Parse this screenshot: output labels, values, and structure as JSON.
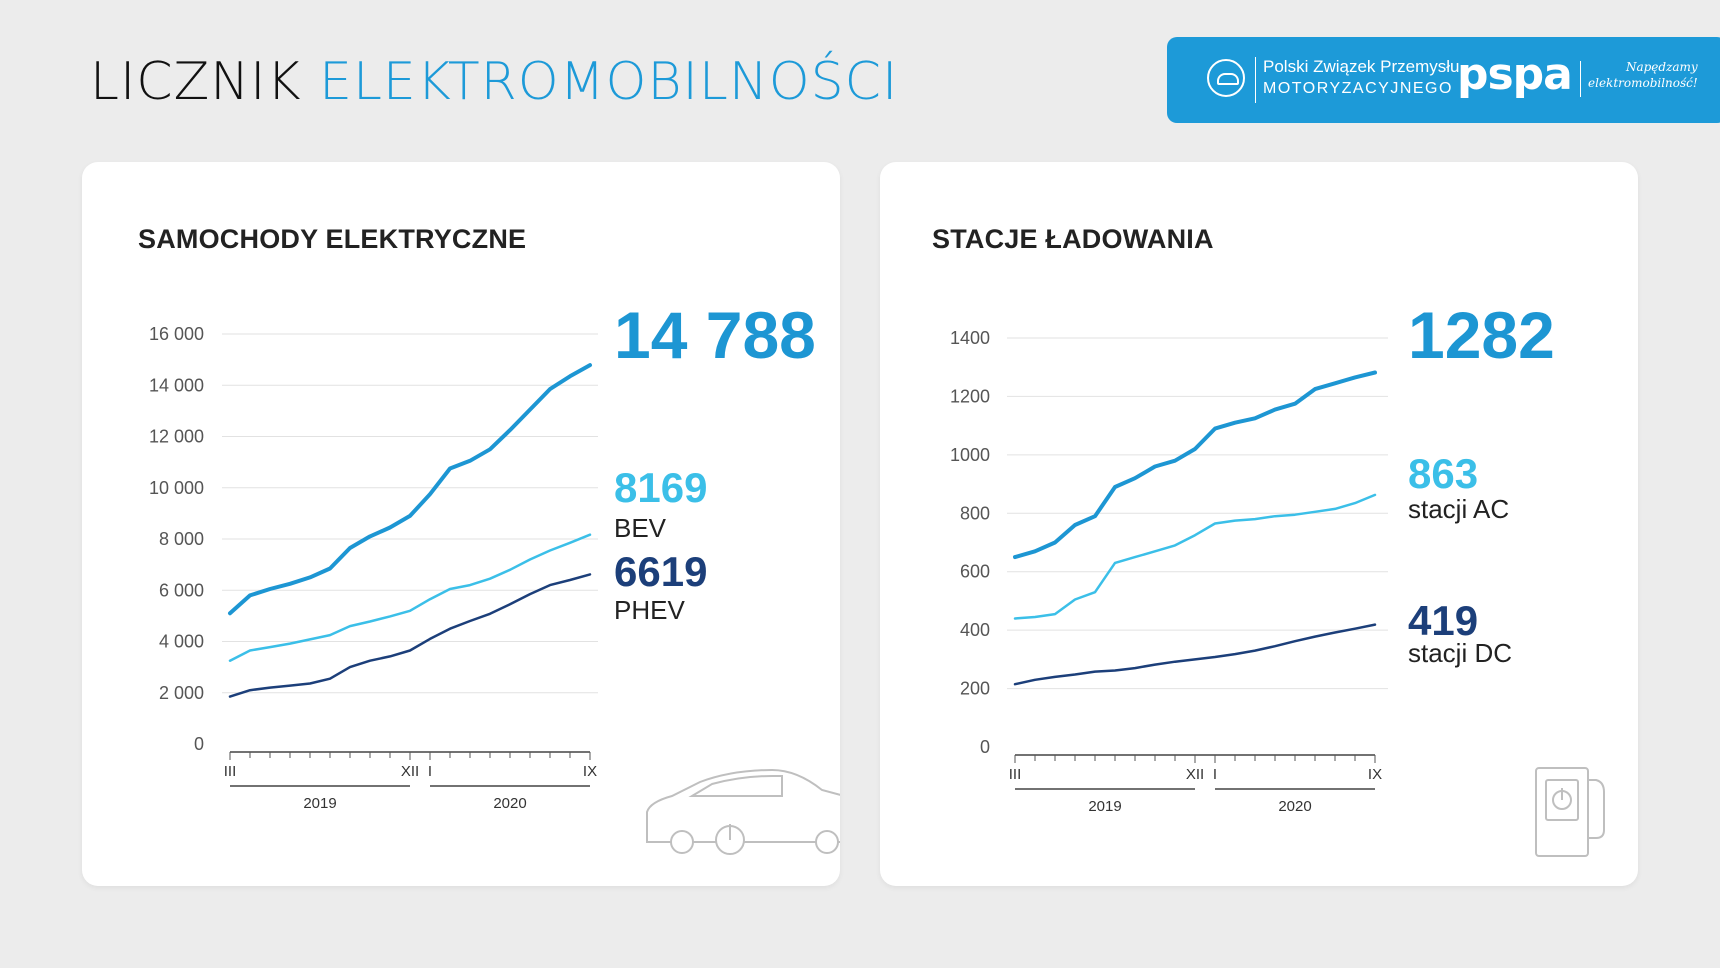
{
  "header": {
    "title_part1": "LICZNIK",
    "title_part2": "ELEKTROMOBILNOŚCI"
  },
  "logos": {
    "pzpm_line1": "Polski Związek Przemysłu",
    "pzpm_line2": "MOTORYZACYJNEGO",
    "pspa": "pspa",
    "pspa_tag1": "Napędzamy",
    "pspa_tag2": "elektromobilność!"
  },
  "colors": {
    "accent": "#1d9ad8",
    "total": "#1d96d3",
    "light": "#3bbfe8",
    "dark": "#1c3f7a",
    "bg": "#ececec"
  },
  "cars": {
    "title": "SAMOCHODY ELEKTRYCZNE",
    "total_value": "14 788",
    "bev_value": "8169",
    "bev_label": "BEV",
    "phev_value": "6619",
    "phev_label": "PHEV",
    "icon": "electric-car-icon"
  },
  "stations": {
    "title": "STACJE ŁADOWANIA",
    "total_value": "1282",
    "ac_value": "863",
    "ac_label": "stacji AC",
    "dc_value": "419",
    "dc_label": "stacji DC",
    "icon": "charging-station-icon"
  },
  "chart_data": [
    {
      "type": "line",
      "title": "SAMOCHODY ELEKTRYCZNE",
      "x_start_label": "III",
      "x_end_2019_label": "XII",
      "x_start_2020_label": "I",
      "x_end_label": "IX",
      "year_labels": [
        "2019",
        "2020"
      ],
      "yticks": [
        "0",
        "2 000",
        "4 000",
        "6 000",
        "8 000",
        "10 000",
        "12 000",
        "14 000",
        "16 000"
      ],
      "ylim": [
        0,
        16000
      ],
      "months": [
        "2019-03",
        "2019-04",
        "2019-05",
        "2019-06",
        "2019-07",
        "2019-08",
        "2019-09",
        "2019-10",
        "2019-11",
        "2019-12",
        "2020-01",
        "2020-02",
        "2020-03",
        "2020-04",
        "2020-05",
        "2020-06",
        "2020-07",
        "2020-08",
        "2020-09"
      ],
      "series": [
        {
          "key": "total",
          "values": [
            5100,
            5800,
            6050,
            6250,
            6500,
            6850,
            7650,
            8100,
            8450,
            8900,
            9750,
            10750,
            11050,
            11500,
            12250,
            13050,
            13850,
            14350,
            14788
          ]
        },
        {
          "key": "bev",
          "values": [
            3250,
            3650,
            3780,
            3920,
            4080,
            4250,
            4600,
            4780,
            4980,
            5200,
            5650,
            6050,
            6200,
            6450,
            6800,
            7200,
            7550,
            7850,
            8169
          ]
        },
        {
          "key": "phev",
          "values": [
            1850,
            2100,
            2200,
            2280,
            2360,
            2550,
            3000,
            3250,
            3420,
            3650,
            4100,
            4500,
            4800,
            5080,
            5450,
            5850,
            6200,
            6400,
            6619
          ]
        }
      ]
    },
    {
      "type": "line",
      "title": "STACJE ŁADOWANIA",
      "x_start_label": "III",
      "x_end_2019_label": "XII",
      "x_start_2020_label": "I",
      "x_end_label": "IX",
      "year_labels": [
        "2019",
        "2020"
      ],
      "yticks": [
        "0",
        "200",
        "400",
        "600",
        "800",
        "1000",
        "1200",
        "1400"
      ],
      "ylim": [
        0,
        1400
      ],
      "months": [
        "2019-03",
        "2019-04",
        "2019-05",
        "2019-06",
        "2019-07",
        "2019-08",
        "2019-09",
        "2019-10",
        "2019-11",
        "2019-12",
        "2020-01",
        "2020-02",
        "2020-03",
        "2020-04",
        "2020-05",
        "2020-06",
        "2020-07",
        "2020-08",
        "2020-09"
      ],
      "series": [
        {
          "key": "total",
          "values": [
            650,
            670,
            700,
            760,
            790,
            890,
            920,
            960,
            980,
            1020,
            1090,
            1110,
            1125,
            1155,
            1175,
            1225,
            1245,
            1265,
            1282
          ]
        },
        {
          "key": "ac",
          "values": [
            440,
            445,
            455,
            505,
            530,
            630,
            650,
            670,
            690,
            725,
            765,
            775,
            780,
            790,
            795,
            805,
            815,
            835,
            863
          ]
        },
        {
          "key": "dc",
          "values": [
            215,
            230,
            240,
            248,
            258,
            262,
            270,
            282,
            292,
            300,
            308,
            318,
            330,
            345,
            362,
            378,
            392,
            405,
            419
          ]
        }
      ]
    }
  ]
}
